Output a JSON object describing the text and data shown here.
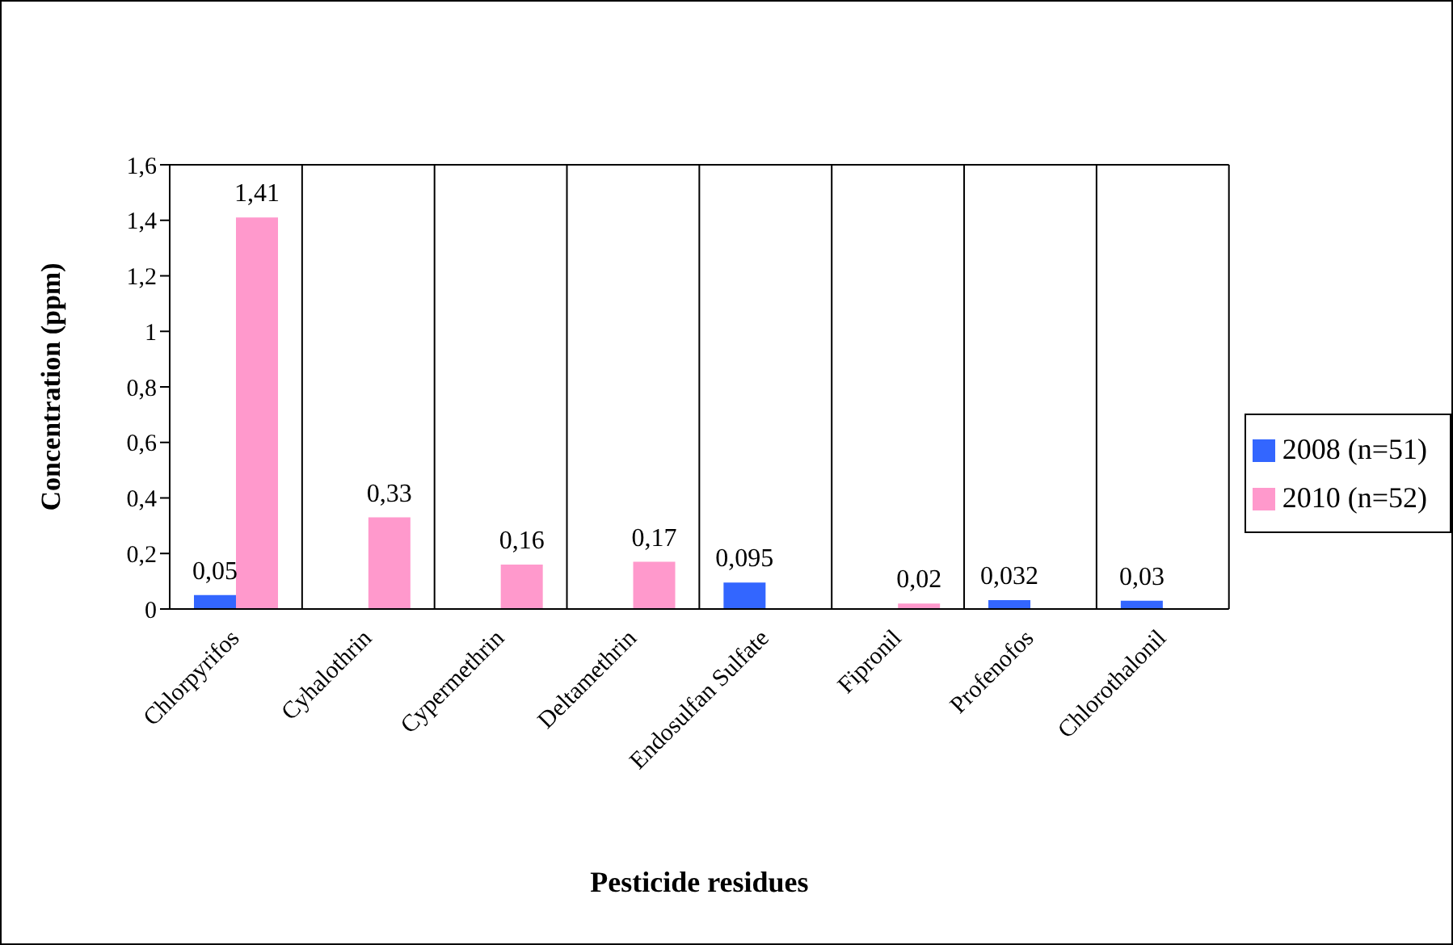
{
  "chart_data": {
    "type": "bar",
    "xlabel": "Pesticide residues",
    "ylabel": "Concentration (ppm)",
    "categories": [
      "Chlorpyrifos",
      "Cyhalothrin",
      "Cypermethrin",
      "Deltamethrin",
      "Endosulfan Sulfate",
      "Fipronil",
      "Profenofos",
      "Chlorothalonil"
    ],
    "series": [
      {
        "name": "2008 (n=51)",
        "color": "#3366ff",
        "values": [
          0.05,
          null,
          null,
          null,
          0.095,
          null,
          0.032,
          0.03
        ],
        "value_labels": [
          "0,05",
          null,
          null,
          null,
          "0,095",
          null,
          "0,032",
          "0,03"
        ]
      },
      {
        "name": "2010 (n=52)",
        "color": "#ff99cc",
        "values": [
          1.41,
          0.33,
          0.16,
          0.17,
          null,
          0.02,
          null,
          null
        ],
        "value_labels": [
          "1,41",
          "0,33",
          "0,16",
          "0,17",
          null,
          "0,02",
          null,
          null
        ]
      }
    ],
    "ylim": [
      0,
      1.6
    ],
    "yticks": [
      0,
      {
        "value": 0.2,
        "label": "0,2"
      },
      {
        "value": 0.4,
        "label": "0,4"
      },
      {
        "value": 0.6,
        "label": "0,6"
      },
      {
        "value": 0.8,
        "label": "0,8"
      },
      1,
      {
        "value": 1.2,
        "label": "1,2"
      },
      {
        "value": 1.4,
        "label": "1,4"
      },
      {
        "value": 1.6,
        "label": "1,6"
      }
    ],
    "grid": "x",
    "legend": "right"
  }
}
